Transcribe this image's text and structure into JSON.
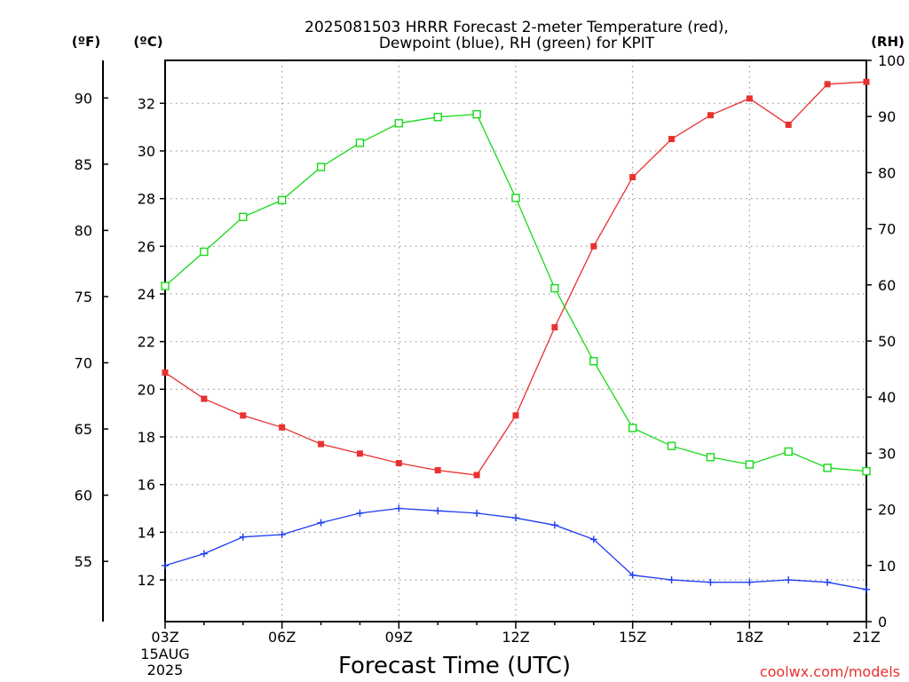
{
  "chart_data": {
    "type": "line",
    "title_line1": "2025081503 HRRR Forecast 2-meter Temperature (red),",
    "title_line2": "Dewpoint (blue), RH (green) for KPIT",
    "xlabel": "Forecast Time (UTC)",
    "y_left_outer_label": "(ºF)",
    "y_left_inner_label": "(ºC)",
    "y_right_label": "(RH)",
    "credit": "coolwx.com/models",
    "x_tick_labels": [
      "03Z",
      "06Z",
      "09Z",
      "12Z",
      "15Z",
      "18Z",
      "21Z"
    ],
    "x_date_line1": "15AUG",
    "x_date_line2": "2025",
    "x_range_hours": [
      3,
      21
    ],
    "celsius_range": [
      10.25,
      33.8
    ],
    "celsius_ticks": [
      12,
      14,
      16,
      18,
      20,
      22,
      24,
      26,
      28,
      30,
      32
    ],
    "fahrenheit_ticks": [
      55,
      60,
      65,
      70,
      75,
      80,
      85,
      90
    ],
    "rh_range": [
      0,
      100
    ],
    "rh_ticks": [
      0,
      10,
      20,
      30,
      40,
      50,
      60,
      70,
      80,
      90,
      100
    ],
    "grid": true,
    "x": [
      3,
      4,
      5,
      6,
      7,
      8,
      9,
      10,
      11,
      12,
      13,
      14,
      15,
      16,
      17,
      18,
      19,
      20,
      21
    ],
    "series": [
      {
        "name": "Temperature",
        "axis": "celsius",
        "color": "#e8312f",
        "marker": "filled-square",
        "values": [
          20.7,
          19.6,
          18.9,
          18.4,
          17.7,
          17.3,
          16.9,
          16.6,
          16.4,
          18.9,
          22.6,
          26.0,
          28.9,
          30.5,
          31.5,
          32.2,
          31.1,
          32.8,
          32.9
        ]
      },
      {
        "name": "Dewpoint",
        "axis": "celsius",
        "color": "#1c3cf0",
        "marker": "plus",
        "values": [
          12.6,
          13.1,
          13.8,
          13.9,
          14.4,
          14.8,
          15.0,
          14.9,
          14.8,
          14.6,
          14.3,
          13.7,
          12.2,
          12.0,
          11.9,
          11.9,
          12.0,
          11.9,
          11.6
        ]
      },
      {
        "name": "RH",
        "axis": "rh",
        "color": "#19d919",
        "marker": "open-square",
        "values": [
          59.8,
          65.9,
          72.1,
          75.1,
          81.0,
          85.3,
          88.8,
          89.9,
          90.4,
          75.5,
          59.4,
          46.4,
          34.5,
          31.3,
          29.3,
          28.0,
          30.3,
          27.4,
          26.8
        ]
      }
    ]
  }
}
